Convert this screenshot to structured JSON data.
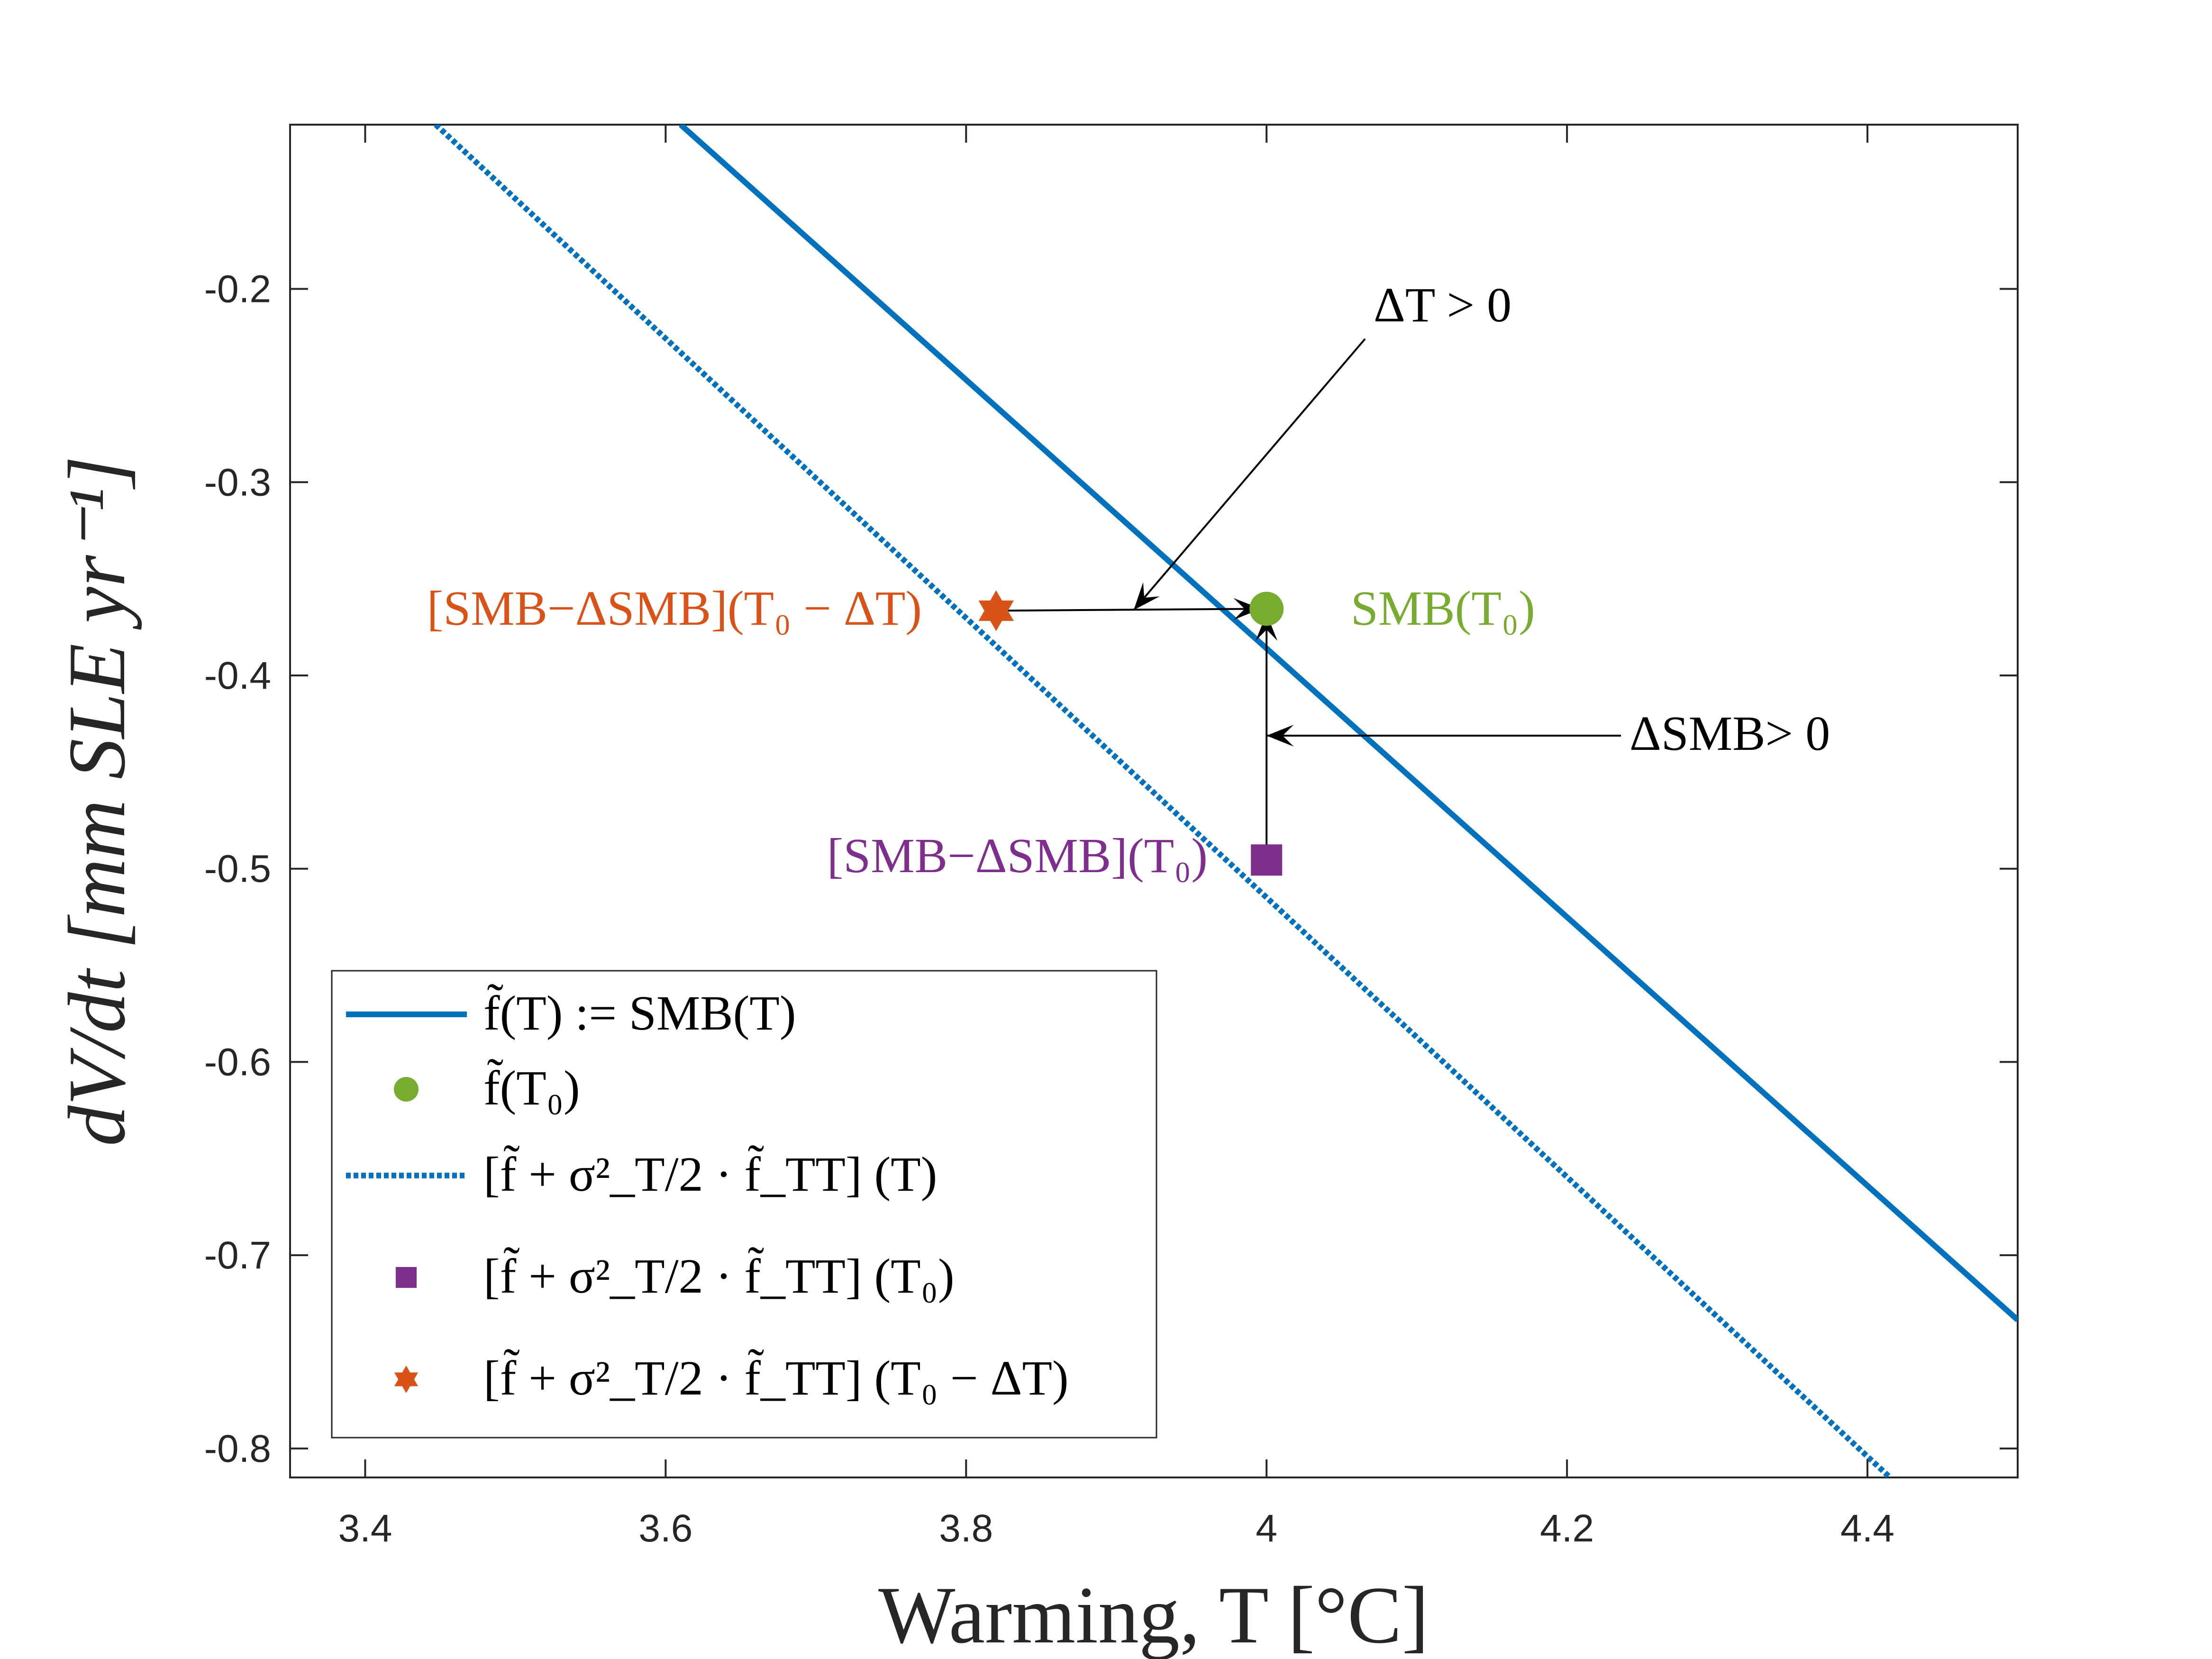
{
  "colors": {
    "line": "#0072BD",
    "point": "#77AC30",
    "square": "#7E2F8E",
    "star": "#D95319",
    "axis": "#262626",
    "arrow": "#000000"
  },
  "chart_data": {
    "type": "line",
    "xlabel": "Warming, T [°C]",
    "ylabel": "dV/dt [mm SLE yr⁻¹]",
    "xlim": [
      3.35,
      4.5
    ],
    "ylim": [
      -0.815,
      -0.115
    ],
    "xticks": [
      3.4,
      3.6,
      3.8,
      4,
      4.2,
      4.4
    ],
    "xtick_labels": [
      "3.4",
      "3.6",
      "3.8",
      "4",
      "4.2",
      "4.4"
    ],
    "yticks": [
      -0.2,
      -0.3,
      -0.4,
      -0.5,
      -0.6,
      -0.7,
      -0.8
    ],
    "ytick_labels": [
      "-0.2",
      "-0.3",
      "-0.4",
      "-0.5",
      "-0.6",
      "-0.7",
      "-0.8"
    ],
    "grid": false,
    "legend_position": "bottom-left",
    "series": [
      {
        "name": "f̃(T) := SMB(T)",
        "style": "solid",
        "x": [
          3.61,
          4.5
        ],
        "y": [
          -0.115,
          -0.7335
        ]
      },
      {
        "name": "[f̃ + σ²_T/2 · f̃_TT] (T)",
        "style": "dotted",
        "x": [
          3.447,
          4.415
        ],
        "y": [
          -0.115,
          -0.815
        ]
      }
    ],
    "points": [
      {
        "id": "f_T0",
        "name": "f̃(T₀)",
        "marker": "circle",
        "x": 4.0,
        "y": -0.3655
      },
      {
        "id": "curv_T0",
        "name": "[f̃ + σ²_T/2 · f̃_TT] (T₀)",
        "marker": "square",
        "x": 4.0,
        "y": -0.4955
      },
      {
        "id": "curv_T0_dT",
        "name": "[f̃ + σ²_T/2 · f̃_TT] (T₀ − ΔT)",
        "marker": "star",
        "x": 3.82,
        "y": -0.3665
      }
    ],
    "annotations": [
      {
        "id": "smb_t0",
        "text": "SMB(T₀)",
        "x": 4.06,
        "y": -0.366,
        "color": "point"
      },
      {
        "id": "smb_dsmb_t0_dt",
        "text": "[SMB−ΔSMB](T₀ − ΔT)",
        "x": 3.795,
        "y": -0.366,
        "color": "star"
      },
      {
        "id": "smb_dsmb_t0",
        "text": "[SMB−ΔSMB](T₀)",
        "x": 3.98,
        "y": -0.496,
        "color": "square"
      },
      {
        "id": "delta_t",
        "text": "ΔT > 0",
        "x": 4.07,
        "y": -0.208,
        "color": "arrow"
      },
      {
        "id": "delta_smb",
        "text": "ΔSMB> 0",
        "x": 4.24,
        "y": -0.431,
        "color": "arrow"
      }
    ]
  }
}
